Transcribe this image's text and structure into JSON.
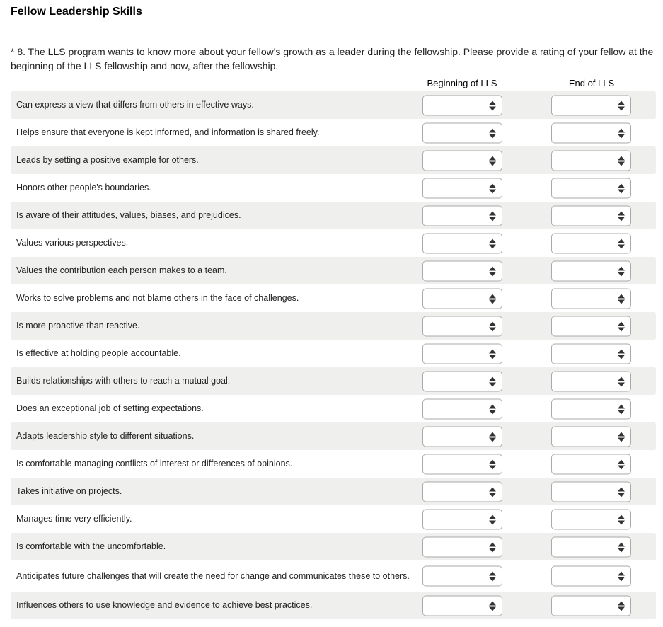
{
  "section_title": "Fellow Leadership Skills",
  "question": {
    "required_mark": "*",
    "text": " 8. The LLS program wants to know more about your fellow's growth as a leader during the fellowship. Please provide a rating of your fellow at the beginning of the LLS fellowship and now, after the fellowship."
  },
  "columns": [
    "Beginning of LLS",
    "End of LLS"
  ],
  "rows": [
    "Can express a view that differs from others in effective ways.",
    "Helps ensure that everyone is kept informed, and information is shared freely.",
    "Leads by setting a positive example for others.",
    "Honors other people's boundaries.",
    "Is aware of their attitudes, values, biases, and prejudices.",
    "Values various perspectives.",
    "Values the contribution each person makes to a team.",
    "Works to solve problems and not blame others in the face of challenges.",
    "Is more proactive than reactive.",
    "Is effective at holding people accountable.",
    "Builds relationships with others to reach a mutual goal.",
    "Does an exceptional job of setting expectations.",
    "Adapts leadership style to different situations.",
    "Is comfortable managing conflicts of interest or differences of opinions.",
    "Takes initiative on projects.",
    "Manages time very efficiently.",
    "Is comfortable with the uncomfortable.",
    "Anticipates future challenges that will create the need for change and communicates these to others.",
    "Influences others to use knowledge and evidence to achieve best practices."
  ],
  "selected_value": ""
}
